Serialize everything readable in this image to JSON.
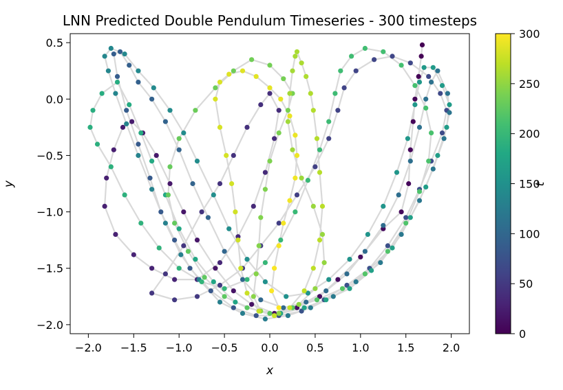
{
  "chart_data": {
    "type": "scatter",
    "title": "LNN Predicted Double Pendulum Timeseries - 300 timesteps",
    "xlabel": "x",
    "ylabel": "y",
    "xlim": [
      -2.2,
      2.2
    ],
    "ylim": [
      -2.08,
      0.58
    ],
    "xticks": [
      -2.0,
      -1.5,
      -1.0,
      -0.5,
      0.0,
      0.5,
      1.0,
      1.5,
      2.0
    ],
    "xtick_labels": [
      "−2.0",
      "−1.5",
      "−1.0",
      "−0.5",
      "0.0",
      "0.5",
      "1.0",
      "1.5",
      "2.0"
    ],
    "yticks": [
      0.5,
      0.0,
      -0.5,
      -1.0,
      -1.5,
      -2.0
    ],
    "ytick_labels": [
      "0.5",
      "0.0",
      "−0.5",
      "−1.0",
      "−1.5",
      "−2.0"
    ],
    "colorbar": {
      "label": "t",
      "colormap": "viridis",
      "range": [
        0,
        300
      ],
      "ticks": [
        0,
        50,
        100,
        150,
        200,
        250,
        300
      ],
      "tick_labels": [
        "0",
        "50",
        "100",
        "150",
        "200",
        "250",
        "300"
      ]
    },
    "grid": false,
    "trajectory_color": "#d9d9d9",
    "points": [
      [
        1.68,
        0.48
      ],
      [
        1.67,
        0.38
      ],
      [
        1.64,
        0.2
      ],
      [
        1.6,
        0.0
      ],
      [
        1.58,
        -0.2
      ],
      [
        1.55,
        -0.45
      ],
      [
        1.53,
        -0.75
      ],
      [
        1.45,
        -1.0
      ],
      [
        1.25,
        -1.15
      ],
      [
        1.0,
        -1.4
      ],
      [
        0.75,
        -1.6
      ],
      [
        0.55,
        -1.75
      ],
      [
        0.3,
        -1.85
      ],
      [
        0.05,
        -1.9
      ],
      [
        -0.2,
        -1.82
      ],
      [
        -0.4,
        -1.7
      ],
      [
        -0.6,
        -1.5
      ],
      [
        -0.8,
        -1.25
      ],
      [
        -0.95,
        -1.0
      ],
      [
        -1.1,
        -0.75
      ],
      [
        -1.25,
        -0.5
      ],
      [
        -1.4,
        -0.3
      ],
      [
        -1.52,
        -0.2
      ],
      [
        -1.62,
        -0.25
      ],
      [
        -1.72,
        -0.45
      ],
      [
        -1.8,
        -0.7
      ],
      [
        -1.82,
        -0.95
      ],
      [
        -1.7,
        -1.2
      ],
      [
        -1.5,
        -1.38
      ],
      [
        -1.3,
        -1.5
      ],
      [
        -1.05,
        -1.6
      ],
      [
        -0.8,
        -1.6
      ],
      [
        -0.55,
        -1.45
      ],
      [
        -0.35,
        -1.22
      ],
      [
        -0.18,
        -0.95
      ],
      [
        -0.05,
        -0.65
      ],
      [
        0.05,
        -0.35
      ],
      [
        0.1,
        -0.1
      ],
      [
        0.0,
        0.05
      ],
      [
        -0.1,
        -0.05
      ],
      [
        -0.25,
        -0.25
      ],
      [
        -0.4,
        -0.5
      ],
      [
        -0.55,
        -0.75
      ],
      [
        -0.75,
        -1.0
      ],
      [
        -0.95,
        -1.3
      ],
      [
        -1.15,
        -1.55
      ],
      [
        -1.3,
        -1.72
      ],
      [
        -1.05,
        -1.78
      ],
      [
        -0.8,
        -1.75
      ],
      [
        -0.55,
        -1.65
      ],
      [
        -0.3,
        -1.5
      ],
      [
        -0.1,
        -1.3
      ],
      [
        0.1,
        -1.1
      ],
      [
        0.3,
        -0.85
      ],
      [
        0.5,
        -0.6
      ],
      [
        0.65,
        -0.35
      ],
      [
        0.75,
        -0.1
      ],
      [
        0.82,
        0.1
      ],
      [
        0.95,
        0.25
      ],
      [
        1.15,
        0.35
      ],
      [
        1.35,
        0.38
      ],
      [
        1.55,
        0.32
      ],
      [
        1.75,
        0.2
      ],
      [
        1.88,
        0.05
      ],
      [
        1.95,
        -0.1
      ],
      [
        1.9,
        -0.3
      ],
      [
        1.78,
        -0.55
      ],
      [
        1.65,
        -0.8
      ],
      [
        1.5,
        -1.05
      ],
      [
        1.3,
        -1.3
      ],
      [
        1.1,
        -1.5
      ],
      [
        0.85,
        -1.65
      ],
      [
        0.6,
        -1.78
      ],
      [
        0.35,
        -1.88
      ],
      [
        0.1,
        -1.92
      ],
      [
        -0.15,
        -1.92
      ],
      [
        -0.4,
        -1.85
      ],
      [
        -0.65,
        -1.7
      ],
      [
        -0.88,
        -1.5
      ],
      [
        -1.05,
        -1.25
      ],
      [
        -1.2,
        -1.0
      ],
      [
        -1.32,
        -0.7
      ],
      [
        -1.45,
        -0.4
      ],
      [
        -1.58,
        -0.1
      ],
      [
        -1.68,
        0.2
      ],
      [
        -1.72,
        0.4
      ],
      [
        -1.65,
        0.42
      ],
      [
        -1.55,
        0.3
      ],
      [
        -1.45,
        0.15
      ],
      [
        -1.3,
        0.0
      ],
      [
        -1.15,
        -0.2
      ],
      [
        -1.0,
        -0.45
      ],
      [
        -0.85,
        -0.75
      ],
      [
        -0.68,
        -1.05
      ],
      [
        -0.5,
        -1.35
      ],
      [
        -0.3,
        -1.6
      ],
      [
        -0.1,
        -1.78
      ],
      [
        0.15,
        -1.85
      ],
      [
        0.4,
        -1.8
      ],
      [
        0.62,
        -1.7
      ],
      [
        0.85,
        -1.55
      ],
      [
        1.05,
        -1.35
      ],
      [
        1.25,
        -1.12
      ],
      [
        1.42,
        -0.85
      ],
      [
        1.55,
        -0.55
      ],
      [
        1.65,
        -0.25
      ],
      [
        1.72,
        0.0
      ],
      [
        1.78,
        0.15
      ],
      [
        1.85,
        0.25
      ],
      [
        1.96,
        0.05
      ],
      [
        1.98,
        -0.12
      ],
      [
        1.92,
        -0.35
      ],
      [
        1.8,
        -0.62
      ],
      [
        1.65,
        -0.9
      ],
      [
        1.45,
        -1.2
      ],
      [
        1.22,
        -1.45
      ],
      [
        0.95,
        -1.62
      ],
      [
        0.7,
        -1.75
      ],
      [
        0.45,
        -1.85
      ],
      [
        0.2,
        -1.92
      ],
      [
        -0.05,
        -1.95
      ],
      [
        -0.3,
        -1.9
      ],
      [
        -0.55,
        -1.8
      ],
      [
        -0.78,
        -1.6
      ],
      [
        -0.98,
        -1.38
      ],
      [
        -1.15,
        -1.1
      ],
      [
        -1.3,
        -0.8
      ],
      [
        -1.45,
        -0.5
      ],
      [
        -1.58,
        -0.22
      ],
      [
        -1.7,
        0.05
      ],
      [
        -1.78,
        0.25
      ],
      [
        -1.82,
        0.38
      ],
      [
        -1.75,
        0.45
      ],
      [
        -1.6,
        0.4
      ],
      [
        -1.45,
        0.25
      ],
      [
        -1.28,
        0.1
      ],
      [
        -1.1,
        -0.1
      ],
      [
        -0.95,
        -0.3
      ],
      [
        -0.8,
        -0.55
      ],
      [
        -0.62,
        -0.85
      ],
      [
        -0.45,
        -1.15
      ],
      [
        -0.25,
        -1.42
      ],
      [
        -0.05,
        -1.62
      ],
      [
        0.18,
        -1.75
      ],
      [
        0.42,
        -1.72
      ],
      [
        0.65,
        -1.6
      ],
      [
        0.88,
        -1.42
      ],
      [
        1.08,
        -1.2
      ],
      [
        1.25,
        -0.95
      ],
      [
        1.4,
        -0.65
      ],
      [
        1.52,
        -0.35
      ],
      [
        1.6,
        -0.05
      ],
      [
        1.65,
        0.15
      ],
      [
        1.7,
        0.28
      ],
      [
        1.8,
        0.28
      ],
      [
        1.9,
        0.12
      ],
      [
        1.98,
        -0.05
      ],
      [
        1.95,
        -0.25
      ],
      [
        1.85,
        -0.5
      ],
      [
        1.72,
        -0.78
      ],
      [
        1.55,
        -1.05
      ],
      [
        1.35,
        -1.32
      ],
      [
        1.12,
        -1.52
      ],
      [
        0.88,
        -1.68
      ],
      [
        0.62,
        -1.78
      ],
      [
        0.38,
        -1.85
      ],
      [
        0.12,
        -1.9
      ],
      [
        -0.12,
        -1.88
      ],
      [
        -0.38,
        -1.8
      ],
      [
        -0.62,
        -1.62
      ],
      [
        -0.82,
        -1.42
      ],
      [
        -1.0,
        -1.15
      ],
      [
        -1.15,
        -0.85
      ],
      [
        -1.3,
        -0.55
      ],
      [
        -1.42,
        -0.3
      ],
      [
        -1.55,
        -0.05
      ],
      [
        -1.68,
        0.15
      ],
      [
        -1.85,
        0.05
      ],
      [
        -1.95,
        -0.1
      ],
      [
        -1.98,
        -0.25
      ],
      [
        -1.9,
        -0.4
      ],
      [
        -1.75,
        -0.6
      ],
      [
        -1.6,
        -0.85
      ],
      [
        -1.42,
        -1.1
      ],
      [
        -1.22,
        -1.32
      ],
      [
        -1.0,
        -1.5
      ],
      [
        -0.75,
        -1.62
      ],
      [
        -0.5,
        -1.68
      ],
      [
        -0.25,
        -1.6
      ],
      [
        -0.05,
        -1.45
      ],
      [
        0.12,
        -1.25
      ],
      [
        0.28,
        -1.0
      ],
      [
        0.42,
        -0.72
      ],
      [
        0.55,
        -0.45
      ],
      [
        0.65,
        -0.2
      ],
      [
        0.72,
        0.05
      ],
      [
        0.78,
        0.25
      ],
      [
        0.9,
        0.38
      ],
      [
        1.05,
        0.45
      ],
      [
        1.25,
        0.42
      ],
      [
        1.45,
        0.3
      ],
      [
        1.6,
        0.12
      ],
      [
        1.72,
        -0.08
      ],
      [
        1.78,
        -0.3
      ],
      [
        1.75,
        -0.55
      ],
      [
        1.65,
        -0.82
      ],
      [
        1.5,
        -1.1
      ],
      [
        1.3,
        -1.35
      ],
      [
        1.05,
        -1.55
      ],
      [
        0.8,
        -1.68
      ],
      [
        0.52,
        -1.78
      ],
      [
        0.25,
        -1.85
      ],
      [
        0.0,
        -1.9
      ],
      [
        -0.25,
        -1.85
      ],
      [
        -0.5,
        -1.75
      ],
      [
        -0.72,
        -1.58
      ],
      [
        -0.9,
        -1.35
      ],
      [
        -1.05,
        -1.1
      ],
      [
        -1.12,
        -0.85
      ],
      [
        -1.1,
        -0.6
      ],
      [
        -1.0,
        -0.35
      ],
      [
        -0.82,
        -0.1
      ],
      [
        -0.6,
        0.1
      ],
      [
        -0.4,
        0.25
      ],
      [
        -0.2,
        0.35
      ],
      [
        0.0,
        0.3
      ],
      [
        0.15,
        0.18
      ],
      [
        0.25,
        0.05
      ],
      [
        0.2,
        -0.1
      ],
      [
        0.1,
        -0.3
      ],
      [
        0.0,
        -0.55
      ],
      [
        -0.05,
        -0.8
      ],
      [
        -0.1,
        -1.05
      ],
      [
        -0.12,
        -1.3
      ],
      [
        -0.15,
        -1.55
      ],
      [
        -0.18,
        -1.75
      ],
      [
        -0.1,
        -1.88
      ],
      [
        0.1,
        -1.9
      ],
      [
        0.32,
        -1.82
      ],
      [
        0.5,
        -1.68
      ],
      [
        0.6,
        -1.45
      ],
      [
        0.58,
        -1.2
      ],
      [
        0.48,
        -0.95
      ],
      [
        0.35,
        -0.7
      ],
      [
        0.25,
        -0.45
      ],
      [
        0.2,
        -0.2
      ],
      [
        0.22,
        0.05
      ],
      [
        0.25,
        0.25
      ],
      [
        0.28,
        0.38
      ],
      [
        0.3,
        0.42
      ],
      [
        0.35,
        0.32
      ],
      [
        0.4,
        0.2
      ],
      [
        0.45,
        0.05
      ],
      [
        0.48,
        -0.1
      ],
      [
        0.52,
        -0.35
      ],
      [
        0.55,
        -0.65
      ],
      [
        0.58,
        -0.95
      ],
      [
        0.55,
        -1.25
      ],
      [
        0.48,
        -1.5
      ],
      [
        0.38,
        -1.7
      ],
      [
        0.22,
        -1.85
      ],
      [
        0.05,
        -1.92
      ],
      [
        -0.12,
        -1.88
      ],
      [
        -0.25,
        -1.72
      ],
      [
        -0.32,
        -1.5
      ],
      [
        -0.35,
        -1.25
      ],
      [
        -0.38,
        -1.0
      ],
      [
        -0.42,
        -0.75
      ],
      [
        -0.48,
        -0.5
      ],
      [
        -0.55,
        -0.25
      ],
      [
        -0.6,
        0.0
      ],
      [
        -0.55,
        0.15
      ],
      [
        -0.45,
        0.22
      ],
      [
        -0.3,
        0.25
      ],
      [
        -0.15,
        0.2
      ],
      [
        0.0,
        0.1
      ],
      [
        0.12,
        0.0
      ],
      [
        0.22,
        -0.15
      ],
      [
        0.28,
        -0.32
      ],
      [
        0.3,
        -0.5
      ],
      [
        0.28,
        -0.7
      ],
      [
        0.22,
        -0.9
      ],
      [
        0.15,
        -1.1
      ],
      [
        0.1,
        -1.3
      ],
      [
        0.05,
        -1.5
      ],
      [
        0.02,
        -1.7
      ],
      [
        0.1,
        -1.85
      ]
    ]
  }
}
